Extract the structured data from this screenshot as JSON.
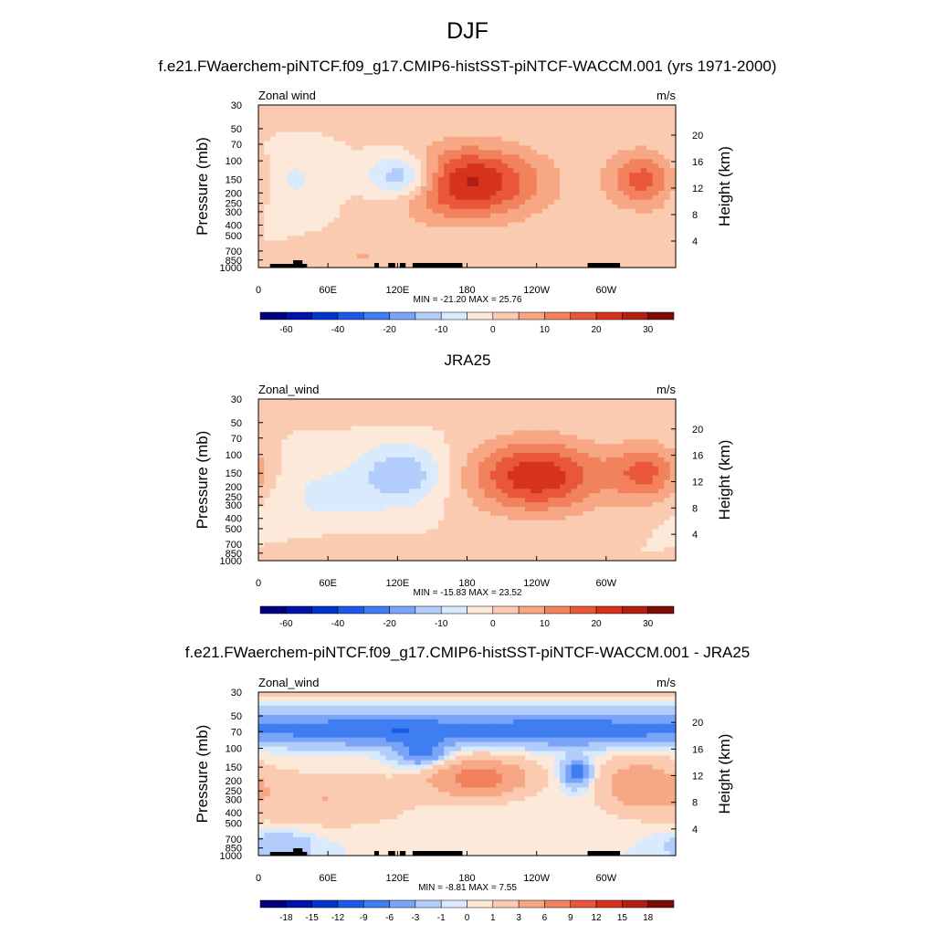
{
  "main_title": "DJF",
  "colors": {
    "wind_levels": [
      "#00007f",
      "#0012a8",
      "#0035c9",
      "#1b5ae6",
      "#3f7ef2",
      "#7aa4f8",
      "#b2cdfb",
      "#daeafd",
      "#fde9d9",
      "#fbcbb1",
      "#f7a784",
      "#f1825d",
      "#e9573a",
      "#d6321d",
      "#b31e12",
      "#7c0c05"
    ],
    "diff_levels": [
      "#00007f",
      "#0012a8",
      "#0035c9",
      "#1b5ae6",
      "#3f7ef2",
      "#7aa4f8",
      "#b2cdfb",
      "#daeafd",
      "#fde9d9",
      "#fbcbb1",
      "#f7a784",
      "#f1825d",
      "#e9573a",
      "#d6321d",
      "#b31e12",
      "#7c0c05"
    ],
    "land": "#000000"
  },
  "chart_data": [
    {
      "type": "heatmap",
      "title": "f.e21.FWaerchem-piNTCF.f09_g17.CMIP6-histSST-piNTCF-WACCM.001 (yrs 1971-2000)",
      "left_label": "Zonal wind",
      "units": "m/s",
      "ylabel": "Pressure (mb)",
      "y2label": "Height (km)",
      "x_ticks": [
        "0",
        "60E",
        "120E",
        "180",
        "120W",
        "60W"
      ],
      "x_tick_values": [
        0,
        60,
        120,
        180,
        240,
        300
      ],
      "xlim": [
        0,
        360
      ],
      "y_ticks": [
        "30",
        "50",
        "70",
        "100",
        "150",
        "200",
        "250",
        "300",
        "400",
        "500",
        "700",
        "850",
        "1000"
      ],
      "y_tick_values": [
        30,
        50,
        70,
        100,
        150,
        200,
        250,
        300,
        400,
        500,
        700,
        850,
        1000
      ],
      "ylim": [
        1000,
        30
      ],
      "y2_ticks": [
        "4",
        "8",
        "12",
        "16",
        "20"
      ],
      "y2_tick_values": [
        4,
        8,
        12,
        16,
        20
      ],
      "stats": "MIN = -21.20  MAX =  25.76",
      "min": -21.2,
      "max": 25.76,
      "colorbar_labels": [
        "-60",
        "-40",
        "-20",
        "-10",
        "0",
        "10",
        "20",
        "30"
      ],
      "colorbar_levels": [
        -70,
        -60,
        -50,
        -40,
        -30,
        -20,
        -15,
        -10,
        -5,
        0,
        5,
        10,
        15,
        20,
        25,
        30,
        35
      ],
      "show_land": true,
      "features": [
        {
          "lon": 180,
          "p": 160,
          "amp": 26,
          "slon": 45,
          "slogp": 0.55
        },
        {
          "lon": 332,
          "p": 150,
          "amp": 17,
          "slon": 22,
          "slogp": 0.45
        },
        {
          "lon": 125,
          "p": 140,
          "amp": -22,
          "slon": 22,
          "slogp": 0.35
        },
        {
          "lon": 30,
          "p": 150,
          "amp": -6,
          "slon": 25,
          "slogp": 0.5
        },
        {
          "lon": 90,
          "p": 800,
          "amp": 5,
          "slon": 30,
          "slogp": 0.3
        }
      ]
    },
    {
      "type": "heatmap",
      "title": "JRA25",
      "left_label": "Zonal_wind",
      "units": "m/s",
      "ylabel": "Pressure (mb)",
      "y2label": "Height (km)",
      "x_ticks": [
        "0",
        "60E",
        "120E",
        "180",
        "120W",
        "60W"
      ],
      "x_tick_values": [
        0,
        60,
        120,
        180,
        240,
        300
      ],
      "xlim": [
        0,
        360
      ],
      "y_ticks": [
        "30",
        "50",
        "70",
        "100",
        "150",
        "200",
        "250",
        "300",
        "400",
        "500",
        "700",
        "850",
        "1000"
      ],
      "y_tick_values": [
        30,
        50,
        70,
        100,
        150,
        200,
        250,
        300,
        400,
        500,
        700,
        850,
        1000
      ],
      "ylim": [
        1000,
        30
      ],
      "y2_ticks": [
        "4",
        "8",
        "12",
        "16",
        "20"
      ],
      "y2_tick_values": [
        4,
        8,
        12,
        16,
        20
      ],
      "stats": "MIN = -15.83  MAX =  23.52",
      "min": -15.83,
      "max": 23.52,
      "colorbar_labels": [
        "-60",
        "-40",
        "-20",
        "-10",
        "0",
        "10",
        "20",
        "30"
      ],
      "colorbar_levels": [
        -70,
        -60,
        -50,
        -40,
        -30,
        -20,
        -15,
        -10,
        -5,
        0,
        5,
        10,
        15,
        20,
        25,
        30,
        35
      ],
      "show_land": false,
      "features": [
        {
          "lon": 240,
          "p": 160,
          "amp": 24,
          "slon": 40,
          "slogp": 0.55
        },
        {
          "lon": 335,
          "p": 150,
          "amp": 16,
          "slon": 22,
          "slogp": 0.45
        },
        {
          "lon": 125,
          "p": 150,
          "amp": -14,
          "slon": 25,
          "slogp": 0.45
        },
        {
          "lon": 60,
          "p": 250,
          "amp": -6,
          "slon": 40,
          "slogp": 0.6
        },
        {
          "lon": 80,
          "p": 800,
          "amp": 5,
          "slon": 35,
          "slogp": 0.3
        }
      ]
    },
    {
      "type": "heatmap",
      "title": "f.e21.FWaerchem-piNTCF.f09_g17.CMIP6-histSST-piNTCF-WACCM.001 - JRA25",
      "left_label": "Zonal_wind",
      "units": "m/s",
      "ylabel": "Pressure (mb)",
      "y2label": "Height (km)",
      "x_ticks": [
        "0",
        "60E",
        "120E",
        "180",
        "120W",
        "60W"
      ],
      "x_tick_values": [
        0,
        60,
        120,
        180,
        240,
        300
      ],
      "xlim": [
        0,
        360
      ],
      "y_ticks": [
        "30",
        "50",
        "70",
        "100",
        "150",
        "200",
        "250",
        "300",
        "400",
        "500",
        "700",
        "850",
        "1000"
      ],
      "y_tick_values": [
        30,
        50,
        70,
        100,
        150,
        200,
        250,
        300,
        400,
        500,
        700,
        850,
        1000
      ],
      "ylim": [
        1000,
        30
      ],
      "y2_ticks": [
        "4",
        "8",
        "12",
        "16",
        "20"
      ],
      "y2_tick_values": [
        4,
        8,
        12,
        16,
        20
      ],
      "stats": "MIN = -8.81  MAX =  7.55",
      "min": -8.81,
      "max": 7.55,
      "colorbar_labels": [
        "-18",
        "-15",
        "-12",
        "-9",
        "-6",
        "-3",
        "-1",
        "0",
        "1",
        "3",
        "6",
        "9",
        "12",
        "15",
        "18"
      ],
      "colorbar_levels": [
        -21,
        -18,
        -15,
        -12,
        -9,
        -6,
        -3,
        -1,
        0,
        1,
        3,
        6,
        9,
        12,
        15,
        18,
        21
      ],
      "show_land": true,
      "features": [
        {
          "lon": 190,
          "p": 190,
          "amp": 7.5,
          "slon": 30,
          "slogp": 0.3
        },
        {
          "lon": 330,
          "p": 220,
          "amp": 5,
          "slon": 25,
          "slogp": 0.4
        },
        {
          "lon": 100,
          "p": 70,
          "amp": -6,
          "slon": 60,
          "slogp": 0.2
        },
        {
          "lon": 270,
          "p": 70,
          "amp": -6,
          "slon": 70,
          "slogp": 0.2
        },
        {
          "lon": 275,
          "p": 170,
          "amp": -8.5,
          "slon": 8,
          "slogp": 0.2
        },
        {
          "lon": 140,
          "p": 110,
          "amp": -7,
          "slon": 15,
          "slogp": 0.2
        },
        {
          "lon": 60,
          "p": 300,
          "amp": 3,
          "slon": 50,
          "slogp": 0.4
        },
        {
          "lon": 20,
          "p": 800,
          "amp": -3,
          "slon": 20,
          "slogp": 0.2
        }
      ]
    }
  ]
}
